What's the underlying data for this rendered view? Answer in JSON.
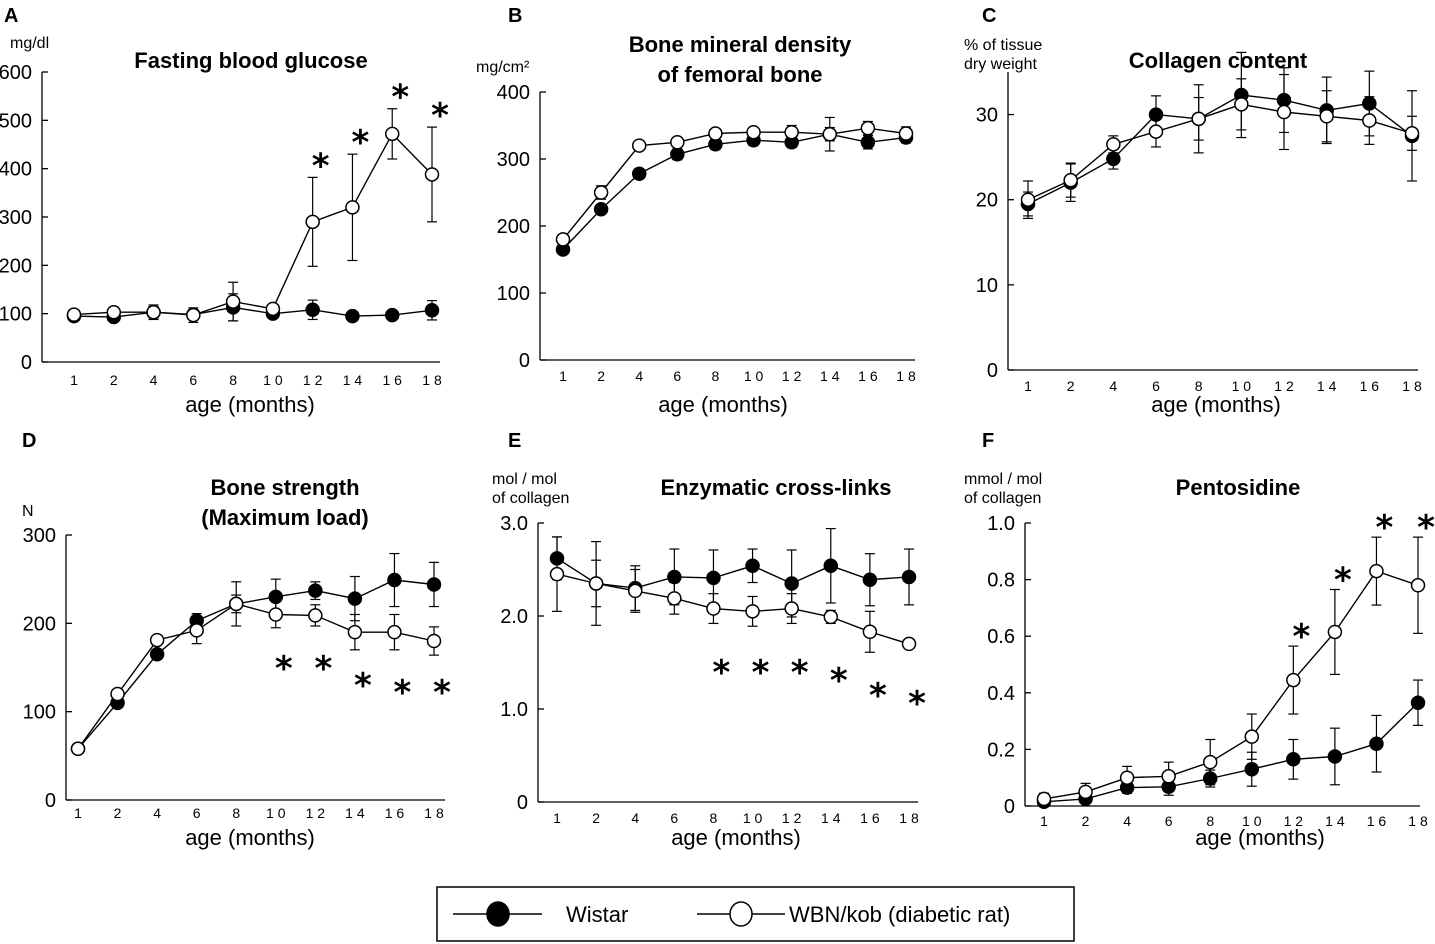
{
  "legend": {
    "series": [
      {
        "name": "Wistar",
        "marker": "filled"
      },
      {
        "name": "WBN/kob (diabetic rat)",
        "marker": "open"
      }
    ]
  },
  "chart_data": [
    {
      "panel": "A",
      "type": "line",
      "title": [
        "Fasting blood glucose"
      ],
      "ylabel": "mg/dl",
      "xlabel": "age (months)",
      "categories": [
        "1",
        "2",
        "4",
        "6",
        "8",
        "1 0",
        "1 2",
        "1 4",
        "1 6",
        "1 8"
      ],
      "ylim": [
        0,
        600
      ],
      "yticks": [
        0,
        100,
        200,
        300,
        400,
        500,
        600
      ],
      "ytick_labels": [
        "0",
        "100",
        "200",
        "300",
        "400",
        "500",
        "600"
      ],
      "series": [
        {
          "name": "Wistar",
          "values": [
            95,
            93,
            103,
            98,
            113,
            100,
            108,
            95,
            97,
            107
          ],
          "err": [
            8,
            8,
            12,
            10,
            28,
            8,
            20,
            5,
            5,
            20
          ]
        },
        {
          "name": "WBN/kob (diabetic rat)",
          "values": [
            98,
            103,
            103,
            97,
            125,
            110,
            290,
            320,
            472,
            388
          ],
          "err": [
            5,
            10,
            15,
            15,
            40,
            8,
            92,
            110,
            52,
            98
          ]
        }
      ],
      "significant": [
        6,
        7,
        8,
        9
      ]
    },
    {
      "panel": "B",
      "type": "line",
      "title": [
        "Bone mineral density",
        "of femoral bone"
      ],
      "ylabel": "mg/cm²",
      "xlabel": "age (months)",
      "categories": [
        "1",
        "2",
        "4",
        "6",
        "8",
        "1 0",
        "1 2",
        "1 4",
        "1 6",
        "1 8"
      ],
      "ylim": [
        0,
        400
      ],
      "yticks": [
        0,
        100,
        200,
        300,
        400
      ],
      "ytick_labels": [
        "0",
        "100",
        "200",
        "300",
        "400"
      ],
      "series": [
        {
          "name": "Wistar",
          "values": [
            165,
            225,
            278,
            307,
            322,
            328,
            325,
            337,
            325,
            332
          ],
          "err": [
            5,
            6,
            6,
            8,
            8,
            8,
            8,
            10,
            10,
            8
          ]
        },
        {
          "name": "WBN/kob (diabetic rat)",
          "values": [
            180,
            250,
            320,
            325,
            338,
            340,
            340,
            337,
            346,
            338
          ],
          "err": [
            5,
            10,
            5,
            5,
            5,
            5,
            10,
            25,
            10,
            10
          ]
        }
      ],
      "significant": []
    },
    {
      "panel": "C",
      "type": "line",
      "title": [
        "Collagen content"
      ],
      "ylabel": "% of tissue dry weight",
      "xlabel": "age (months)",
      "categories": [
        "1",
        "2",
        "4",
        "6",
        "8",
        "1 0",
        "1 2",
        "1 4",
        "1 6",
        "1 8"
      ],
      "ylim": [
        0,
        35
      ],
      "yticks": [
        0,
        10,
        20,
        30
      ],
      "ytick_labels": [
        "0",
        "10",
        "20",
        "30"
      ],
      "series": [
        {
          "name": "Wistar",
          "values": [
            19.5,
            22.0,
            24.8,
            30.0,
            29.5,
            32.3,
            31.7,
            30.5,
            31.3,
            27.5
          ],
          "err": [
            1.4,
            2.2,
            1.2,
            2.2,
            4.0,
            5.0,
            3.8,
            3.9,
            3.8,
            5.3
          ]
        },
        {
          "name": "WBN/kob (diabetic rat)",
          "values": [
            20.0,
            22.3,
            26.5,
            28.0,
            29.5,
            31.2,
            30.3,
            29.8,
            29.3,
            27.8
          ],
          "err": [
            2.2,
            2.0,
            1.0,
            1.8,
            2.5,
            3.0,
            4.4,
            3.0,
            2.8,
            2.0
          ]
        }
      ],
      "significant": []
    },
    {
      "panel": "D",
      "type": "line",
      "title": [
        "Bone strength",
        "(Maximum load)"
      ],
      "ylabel": "N",
      "xlabel": "age (months)",
      "categories": [
        "1",
        "2",
        "4",
        "6",
        "8",
        "1 0",
        "1 2",
        "1 4",
        "1 6",
        "1 8"
      ],
      "ylim": [
        0,
        300
      ],
      "yticks": [
        0,
        100,
        200,
        300
      ],
      "ytick_labels": [
        "0",
        "100",
        "200",
        "300"
      ],
      "series": [
        {
          "name": "Wistar",
          "values": [
            58,
            110,
            165,
            203,
            222,
            230,
            237,
            228,
            249,
            244
          ],
          "err": [
            2,
            5,
            5,
            8,
            25,
            20,
            10,
            25,
            30,
            25
          ]
        },
        {
          "name": "WBN/kob (diabetic rat)",
          "values": [
            58,
            120,
            181,
            192,
            222,
            210,
            209,
            190,
            190,
            180
          ],
          "err": [
            2,
            5,
            5,
            15,
            10,
            15,
            12,
            20,
            20,
            16
          ]
        }
      ],
      "significant": [
        5,
        6,
        7,
        8,
        9
      ]
    },
    {
      "panel": "E",
      "type": "line",
      "title": [
        "Enzymatic cross-links"
      ],
      "ylabel": "mol / mol of collagen",
      "xlabel": "age (months)",
      "categories": [
        "1",
        "2",
        "4",
        "6",
        "8",
        "1 0",
        "1 2",
        "1 4",
        "1 6",
        "1 8"
      ],
      "ylim": [
        0,
        3.0
      ],
      "yticks": [
        0,
        1.0,
        2.0,
        3.0
      ],
      "ytick_labels": [
        "0",
        "1.0",
        "2.0",
        "3.0"
      ],
      "series": [
        {
          "name": "Wistar",
          "values": [
            2.62,
            2.35,
            2.3,
            2.42,
            2.41,
            2.54,
            2.35,
            2.54,
            2.39,
            2.42
          ],
          "err": [
            0.23,
            0.25,
            0.24,
            0.3,
            0.3,
            0.18,
            0.36,
            0.4,
            0.28,
            0.3
          ]
        },
        {
          "name": "WBN/kob (diabetic rat)",
          "values": [
            2.45,
            2.35,
            2.27,
            2.19,
            2.08,
            2.05,
            2.08,
            1.99,
            1.83,
            1.7
          ],
          "err": [
            0.4,
            0.45,
            0.23,
            0.17,
            0.16,
            0.16,
            0.16,
            0.07,
            0.22,
            0.04
          ]
        }
      ],
      "significant": [
        4,
        5,
        6,
        7,
        8,
        9
      ]
    },
    {
      "panel": "F",
      "type": "line",
      "title": [
        "Pentosidine"
      ],
      "ylabel": "mmol / mol of collagen",
      "xlabel": "age (months)",
      "categories": [
        "1",
        "2",
        "4",
        "6",
        "8",
        "1 0",
        "1 2",
        "1 4",
        "1 6",
        "1 8"
      ],
      "ylim": [
        0,
        1.0
      ],
      "yticks": [
        0,
        0.2,
        0.4,
        0.6,
        0.8,
        1.0
      ],
      "ytick_labels": [
        "0",
        "0.2",
        "0.4",
        "0.6",
        "0.8",
        "1.0"
      ],
      "series": [
        {
          "name": "Wistar",
          "values": [
            0.015,
            0.025,
            0.065,
            0.068,
            0.097,
            0.13,
            0.165,
            0.175,
            0.22,
            0.365
          ],
          "err": [
            0.01,
            0.01,
            0.02,
            0.03,
            0.03,
            0.06,
            0.07,
            0.1,
            0.1,
            0.08
          ]
        },
        {
          "name": "WBN/kob (diabetic rat)",
          "values": [
            0.025,
            0.05,
            0.1,
            0.105,
            0.155,
            0.245,
            0.445,
            0.615,
            0.83,
            0.78
          ],
          "err": [
            0.02,
            0.03,
            0.04,
            0.05,
            0.08,
            0.08,
            0.12,
            0.15,
            0.12,
            0.17
          ]
        }
      ],
      "significant": [
        6,
        7,
        8,
        9
      ]
    }
  ]
}
